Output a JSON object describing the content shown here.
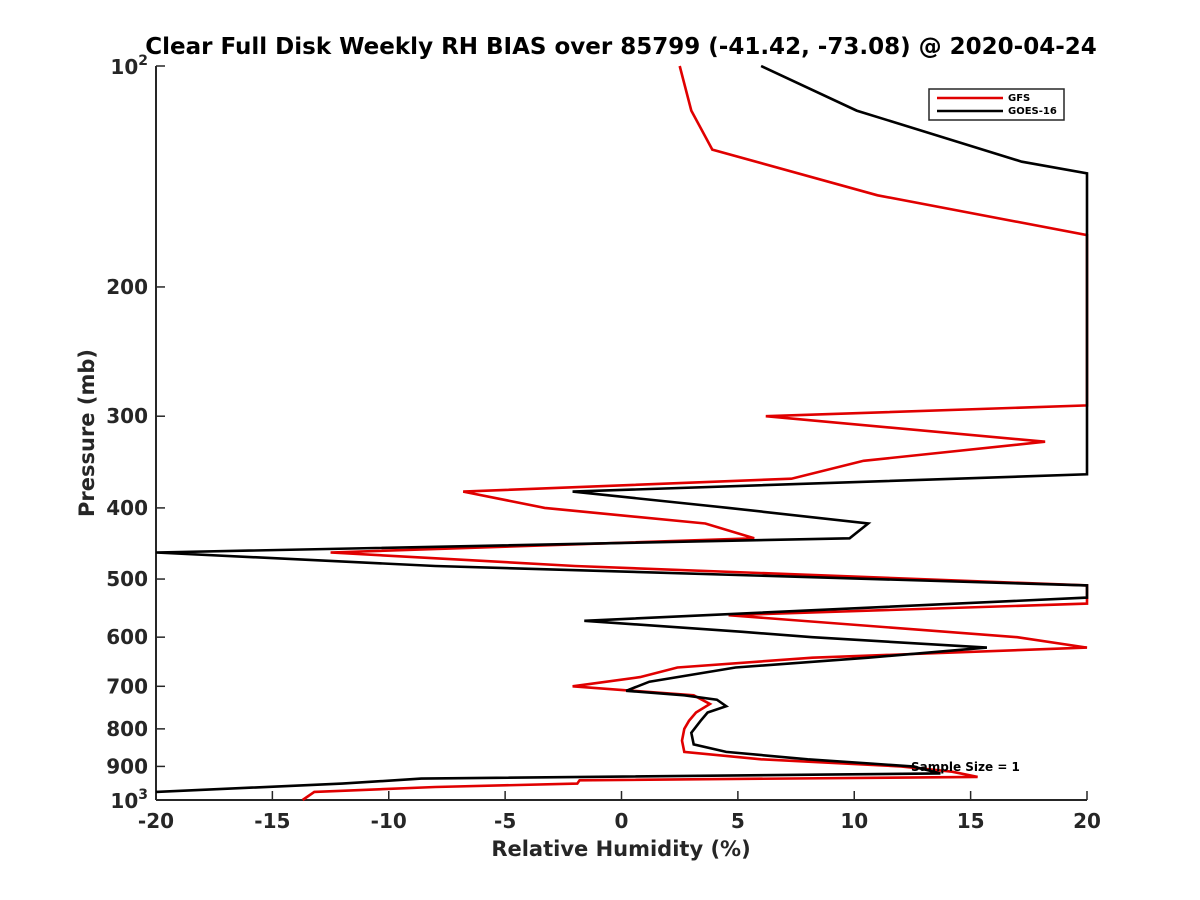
{
  "chart_data": {
    "type": "line",
    "title": "Clear Full Disk Weekly RH BIAS over 85799 (-41.42, -73.08) @ 2020-04-24",
    "xlabel": "Relative Humidity (%)",
    "ylabel": "Pressure (mb)",
    "xlim": [
      -20,
      20
    ],
    "ylim": [
      100,
      1000
    ],
    "yscale": "log",
    "y_reversed": true,
    "x_ticks": [
      "-20",
      "-15",
      "-10",
      "-5",
      "0",
      "5",
      "10",
      "15",
      "20"
    ],
    "y_ticks": [
      {
        "value": 100,
        "base": "10",
        "exp": "2"
      },
      {
        "value": 200,
        "label": "200"
      },
      {
        "value": 300,
        "label": "300"
      },
      {
        "value": 400,
        "label": "400"
      },
      {
        "value": 500,
        "label": "500"
      },
      {
        "value": 600,
        "label": "600"
      },
      {
        "value": 700,
        "label": "700"
      },
      {
        "value": 800,
        "label": "800"
      },
      {
        "value": 900,
        "label": "900"
      },
      {
        "value": 1000,
        "base": "10",
        "exp": "3"
      }
    ],
    "legend_position": "top-right",
    "grid": false,
    "annotation": "Sample Size = 1",
    "series": [
      {
        "name": "GFS",
        "color": "#e00000",
        "points": [
          [
            2.5,
            100
          ],
          [
            3,
            115
          ],
          [
            3.9,
            130
          ],
          [
            11,
            150
          ],
          [
            20,
            170
          ],
          [
            20,
            290
          ],
          [
            6.2,
            300
          ],
          [
            18.2,
            325
          ],
          [
            10.4,
            345
          ],
          [
            7.3,
            365
          ],
          [
            -6.8,
            380
          ],
          [
            -3.3,
            400
          ],
          [
            3.6,
            420
          ],
          [
            5.7,
            440
          ],
          [
            -12.5,
            460
          ],
          [
            -2,
            480
          ],
          [
            20,
            510
          ],
          [
            20,
            540
          ],
          [
            4.6,
            560
          ],
          [
            17,
            600
          ],
          [
            20,
            620
          ],
          [
            8.2,
            640
          ],
          [
            2.4,
            660
          ],
          [
            0.8,
            680
          ],
          [
            -2.1,
            700
          ],
          [
            3.1,
            720
          ],
          [
            3.8,
            740
          ],
          [
            3.2,
            760
          ],
          [
            2.9,
            780
          ],
          [
            2.7,
            800
          ],
          [
            2.6,
            830
          ],
          [
            2.7,
            860
          ],
          [
            6,
            880
          ],
          [
            12,
            900
          ],
          [
            14.2,
            915
          ],
          [
            15.3,
            930
          ],
          [
            -1.8,
            940
          ],
          [
            -1.9,
            950
          ],
          [
            -8,
            960
          ],
          [
            -13.2,
            975
          ],
          [
            -13.7,
            1000
          ]
        ]
      },
      {
        "name": "GOES-16",
        "color": "#000000",
        "points": [
          [
            6,
            100
          ],
          [
            10.1,
            115
          ],
          [
            17.2,
            135
          ],
          [
            20,
            140
          ],
          [
            20,
            360
          ],
          [
            -2.1,
            380
          ],
          [
            4.6,
            400
          ],
          [
            10.6,
            420
          ],
          [
            9.8,
            440
          ],
          [
            -20,
            460
          ],
          [
            -8,
            480
          ],
          [
            20,
            510
          ],
          [
            20,
            530
          ],
          [
            -1.6,
            570
          ],
          [
            5.2,
            590
          ],
          [
            8.2,
            600
          ],
          [
            15.7,
            620
          ],
          [
            10.6,
            640
          ],
          [
            4.9,
            660
          ],
          [
            1.2,
            690
          ],
          [
            0.2,
            710
          ],
          [
            2.7,
            720
          ],
          [
            4.1,
            730
          ],
          [
            4.5,
            745
          ],
          [
            3.7,
            760
          ],
          [
            3.4,
            780
          ],
          [
            3,
            810
          ],
          [
            3.1,
            840
          ],
          [
            4.5,
            860
          ],
          [
            8,
            880
          ],
          [
            12.5,
            900
          ],
          [
            13.7,
            920
          ],
          [
            -8.6,
            935
          ],
          [
            -12,
            950
          ],
          [
            -20,
            975
          ]
        ]
      }
    ]
  }
}
